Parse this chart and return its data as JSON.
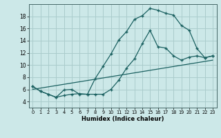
{
  "xlabel": "Humidex (Indice chaleur)",
  "background_color": "#cce8e8",
  "grid_color": "#aacccc",
  "line_color": "#1a6060",
  "xlim": [
    -0.5,
    23.5
  ],
  "ylim": [
    3.0,
    20.0
  ],
  "yticks": [
    4,
    6,
    8,
    10,
    12,
    14,
    16,
    18
  ],
  "xticks": [
    0,
    1,
    2,
    3,
    4,
    5,
    6,
    7,
    8,
    9,
    10,
    11,
    12,
    13,
    14,
    15,
    16,
    17,
    18,
    19,
    20,
    21,
    22,
    23
  ],
  "line1_x": [
    0,
    1,
    2,
    3,
    4,
    5,
    6,
    7,
    8,
    9,
    10,
    11,
    12,
    13,
    14,
    15,
    16,
    17,
    18,
    19,
    20,
    21,
    22,
    23
  ],
  "line1_y": [
    6.5,
    5.7,
    5.2,
    4.7,
    5.0,
    5.2,
    5.3,
    5.2,
    7.8,
    9.8,
    11.8,
    14.1,
    15.5,
    17.5,
    18.1,
    19.3,
    19.0,
    18.5,
    18.2,
    16.5,
    15.7,
    12.7,
    11.2,
    11.5
  ],
  "line2_x": [
    0,
    1,
    2,
    3,
    4,
    5,
    6,
    7,
    8,
    9,
    10,
    11,
    12,
    13,
    14,
    15,
    16,
    17,
    18,
    19,
    20,
    21,
    22,
    23
  ],
  "line2_y": [
    6.5,
    5.7,
    5.2,
    4.7,
    5.9,
    6.0,
    5.2,
    5.2,
    5.2,
    5.2,
    6.0,
    7.5,
    9.5,
    11.0,
    13.5,
    15.7,
    13.0,
    12.8,
    11.5,
    10.8,
    11.3,
    11.5,
    11.2,
    11.5
  ],
  "line3_x": [
    0,
    23
  ],
  "line3_y": [
    6.0,
    10.8
  ]
}
